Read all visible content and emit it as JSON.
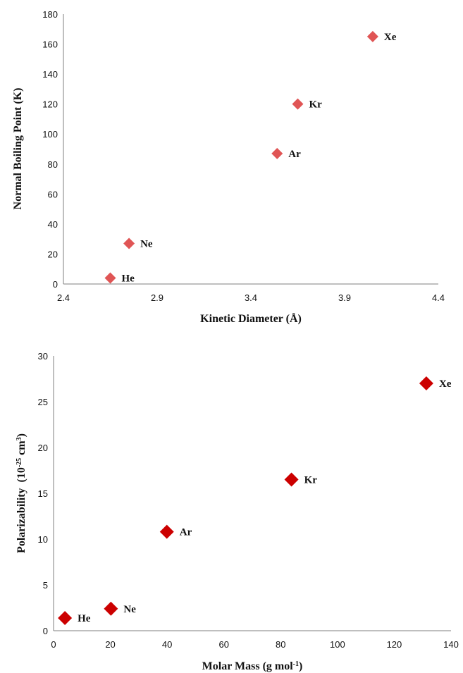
{
  "chart_data": [
    {
      "type": "scatter",
      "xlabel": "Kinetic Diameter (Å)",
      "ylabel": "Normal Boiling Point (K)",
      "xlim": [
        2.4,
        4.4
      ],
      "ylim": [
        0,
        180
      ],
      "x_ticks": [
        "2.4",
        "2.9",
        "3.4",
        "3.9",
        "4.4"
      ],
      "y_ticks": [
        "0",
        "20",
        "40",
        "60",
        "80",
        "100",
        "120",
        "140",
        "160",
        "180"
      ],
      "grid": false,
      "marker_color": "#e05555",
      "points": [
        {
          "label": "He",
          "x": 2.65,
          "y": 4
        },
        {
          "label": "Ne",
          "x": 2.75,
          "y": 27
        },
        {
          "label": "Ar",
          "x": 3.54,
          "y": 87
        },
        {
          "label": "Kr",
          "x": 3.65,
          "y": 120
        },
        {
          "label": "Xe",
          "x": 4.05,
          "y": 165
        }
      ]
    },
    {
      "type": "scatter",
      "xlabel": "Molar Mass (g mol",
      "xlabel_sup": "-1",
      "xlabel_end": ")",
      "ylabel": "Polarizability  (10",
      "ylabel_sup": "-25",
      "ylabel_mid": " cm",
      "ylabel_sup2": "3",
      "ylabel_end": ")",
      "xlim": [
        0,
        140
      ],
      "ylim": [
        0,
        30
      ],
      "x_ticks": [
        "0",
        "20",
        "40",
        "60",
        "80",
        "100",
        "120",
        "140"
      ],
      "y_ticks": [
        "0",
        "5",
        "10",
        "15",
        "20",
        "25",
        "30"
      ],
      "grid": false,
      "marker_color": "#cc0000",
      "points": [
        {
          "label": "He",
          "x": 4.0,
          "y": 1.38
        },
        {
          "label": "Ne",
          "x": 20.2,
          "y": 2.4
        },
        {
          "label": "Ar",
          "x": 39.9,
          "y": 10.8
        },
        {
          "label": "Kr",
          "x": 83.8,
          "y": 16.5
        },
        {
          "label": "Xe",
          "x": 131.3,
          "y": 27.0
        }
      ]
    }
  ]
}
